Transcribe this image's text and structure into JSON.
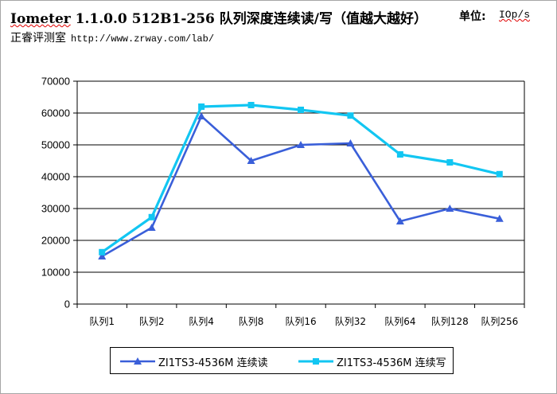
{
  "header": {
    "title_product": "Iometer",
    "title_rest": " 1.1.0.0 512B1-256 队列深度连续读/写（值越大越好）",
    "unit_label": "单位:",
    "unit_value": "IOp/s",
    "subtitle_org": "正睿评测室",
    "subtitle_url": "http://www.zrway.com/lab/"
  },
  "chart_data": {
    "type": "line",
    "categories": [
      "队列1",
      "队列2",
      "队列4",
      "队列8",
      "队列16",
      "队列32",
      "队列64",
      "队列128",
      "队列256"
    ],
    "y_ticks": [
      "0",
      "10000",
      "20000",
      "30000",
      "40000",
      "50000",
      "60000",
      "70000"
    ],
    "ylim": [
      0,
      70000
    ],
    "grid": true,
    "legend_position": "bottom",
    "series": [
      {
        "name": "ZI1TS3-4536M 连续读",
        "color": "#3a5fd9",
        "marker": "triangle",
        "values": [
          15000,
          24000,
          59000,
          45000,
          50000,
          50500,
          26000,
          30000,
          26800
        ]
      },
      {
        "name": "ZI1TS3-4536M 连续写",
        "color": "#12c6f2",
        "marker": "square",
        "values": [
          16300,
          27300,
          62000,
          62500,
          61000,
          59200,
          47000,
          44500,
          40800
        ]
      }
    ]
  }
}
